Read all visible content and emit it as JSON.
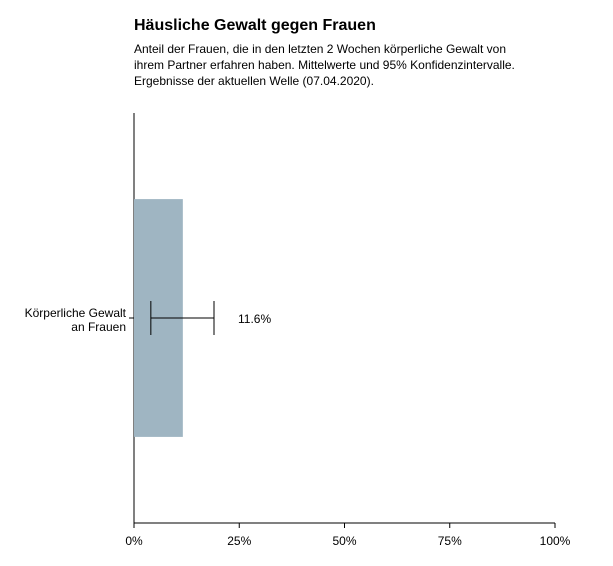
{
  "chart_data": {
    "type": "bar",
    "orientation": "horizontal",
    "title": "Häusliche Gewalt gegen Frauen",
    "subtitle": [
      "Anteil der Frauen, die in den letzten 2 Wochen körperliche Gewalt von",
      "ihrem Partner erfahren haben. Mittelwerte und 95% Konfidenzintervalle.",
      "Ergebnisse der aktuellen Welle (07.04.2020)."
    ],
    "categories": [
      "Körperliche Gewalt an Frauen"
    ],
    "series": [
      {
        "color": "#9fb5c2",
        "values": [
          11.6
        ],
        "value_labels": [
          "11.6%"
        ],
        "ci_low": [
          4.0
        ],
        "ci_high": [
          19.0
        ]
      }
    ],
    "xlim": [
      0,
      100
    ],
    "xticks": [
      {
        "value": 0,
        "label": "0%"
      },
      {
        "value": 25,
        "label": "25%"
      },
      {
        "value": 50,
        "label": "50%"
      },
      {
        "value": 75,
        "label": "75%"
      },
      {
        "value": 100,
        "label": "100%"
      }
    ]
  }
}
